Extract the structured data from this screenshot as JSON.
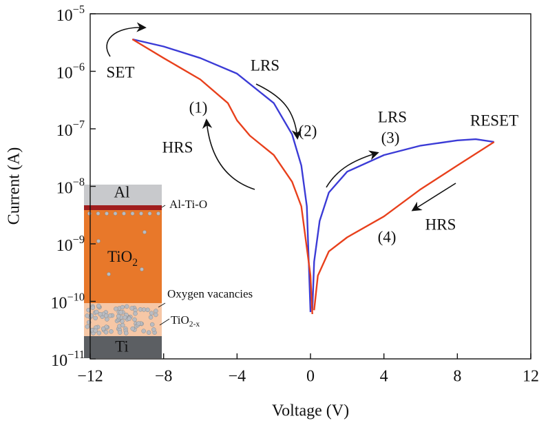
{
  "chart_data": {
    "type": "line",
    "x_label": "Voltage (V)",
    "y_label": "Current (A)",
    "log_y": true,
    "xlim": [
      -12,
      12
    ],
    "xticks": [
      {
        "value": -12,
        "label": "−12"
      },
      {
        "value": -8,
        "label": "−8"
      },
      {
        "value": -4,
        "label": "−4"
      },
      0,
      4,
      8,
      12
    ],
    "ylim": [
      1e-11,
      1e-05
    ],
    "yticks": [
      {
        "value": 1e-11,
        "label": "10−11"
      },
      {
        "value": 1e-10,
        "label": "10−10"
      },
      {
        "value": 1e-09,
        "label": "10−9"
      },
      {
        "value": 1e-08,
        "label": "10−8"
      },
      {
        "value": 1e-07,
        "label": "10−7"
      },
      {
        "value": 1e-06,
        "label": "10−6"
      },
      {
        "value": 1e-05,
        "label": "10−5"
      }
    ],
    "series": [
      {
        "color": "#3b3bd6",
        "x": [
          -9.7,
          -8,
          -6,
          -4,
          -2,
          -1,
          -0.5,
          -0.2,
          0,
          null,
          0.1,
          0.2,
          0.5,
          1,
          2,
          4,
          6,
          8,
          9,
          10
        ],
        "values": [
          3.6e-06,
          2.7e-06,
          1.7e-06,
          9.1e-07,
          2.8e-07,
          8e-08,
          2.3e-08,
          4.5e-09,
          6.5e-11,
          null,
          7e-11,
          4.9e-10,
          2.5e-09,
          7.8e-09,
          1.8e-08,
          3.5e-08,
          5.1e-08,
          6.3e-08,
          6.6e-08,
          5.9e-08
        ]
      },
      {
        "color": "#e8401c",
        "x": [
          -9.7,
          -8,
          -6,
          -4.5,
          -4,
          -3.3,
          -2,
          -1,
          -0.5,
          0,
          0.1,
          null,
          0.2,
          0.4,
          1,
          2,
          4,
          6,
          8,
          10
        ],
        "values": [
          3.6e-06,
          1.7e-06,
          7.2e-07,
          2.8e-07,
          1.4e-07,
          7.6e-08,
          3.5e-08,
          1.2e-08,
          4.5e-09,
          2.8e-10,
          6e-11,
          null,
          7e-11,
          2.8e-10,
          7.4e-10,
          1.3e-09,
          3e-09,
          8.9e-09,
          2.3e-08,
          5.9e-08
        ]
      }
    ],
    "annotations": [
      "SET",
      "LRS",
      "(2)",
      "(1)",
      "HRS",
      "LRS",
      "(3)",
      "RESET",
      "HRS",
      "(4)"
    ],
    "inset_labels": [
      "Al",
      "Al-Ti-O",
      "TiO2",
      "Oxygen vacancies",
      "TiO2-x",
      "Ti"
    ]
  }
}
